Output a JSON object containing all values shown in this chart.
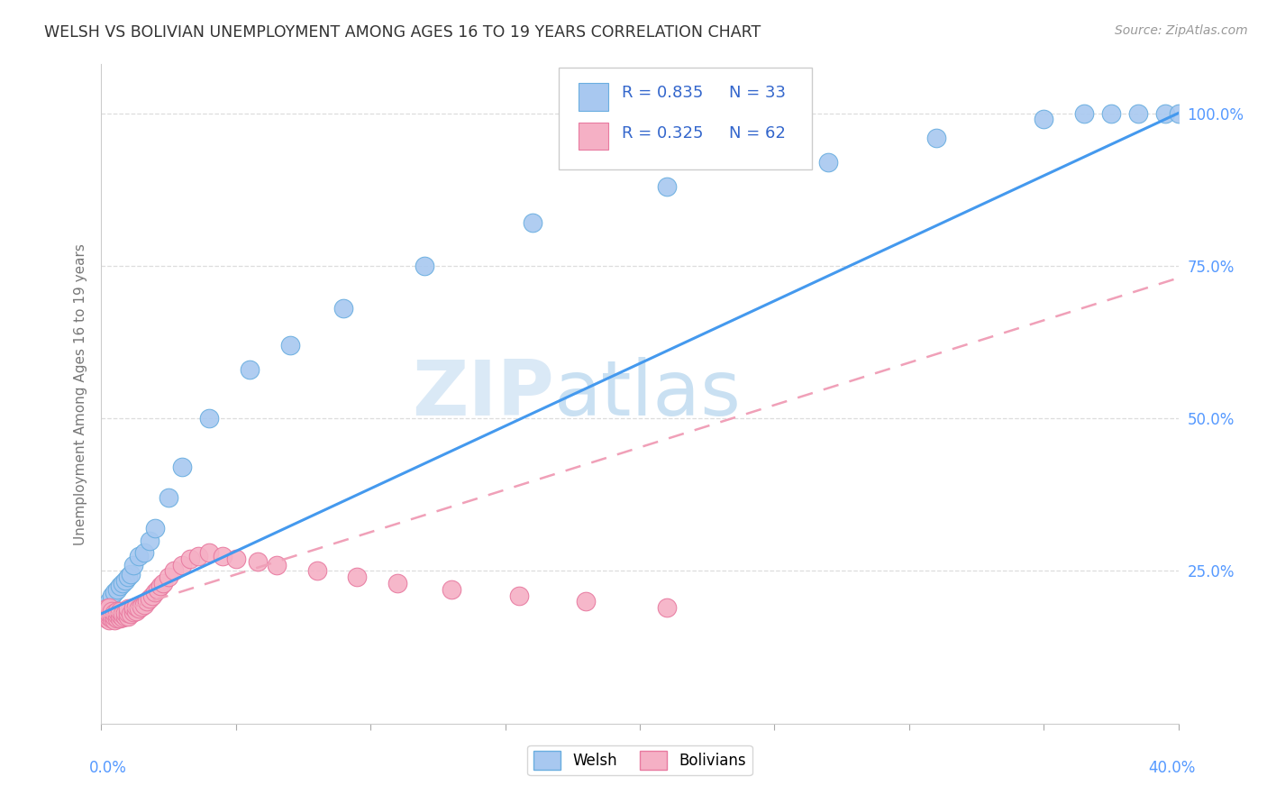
{
  "title": "WELSH VS BOLIVIAN UNEMPLOYMENT AMONG AGES 16 TO 19 YEARS CORRELATION CHART",
  "source": "Source: ZipAtlas.com",
  "ylabel": "Unemployment Among Ages 16 to 19 years",
  "welsh_color": "#a8c8f0",
  "welsh_edge_color": "#6aaee0",
  "bolivian_color": "#f5b0c5",
  "bolivian_edge_color": "#e87aa0",
  "welsh_line_color": "#4499ee",
  "bolivian_line_color": "#f0a0b8",
  "axis_tick_color": "#5599ff",
  "grid_color": "#dddddd",
  "title_color": "#333333",
  "source_color": "#999999",
  "ylabel_color": "#777777",
  "watermark_color": "#d0e8f8",
  "xlim": [
    0.0,
    0.4
  ],
  "ylim": [
    0.0,
    1.08
  ],
  "welsh_x": [
    0.001,
    0.002,
    0.003,
    0.004,
    0.005,
    0.006,
    0.007,
    0.008,
    0.009,
    0.01,
    0.011,
    0.012,
    0.014,
    0.016,
    0.018,
    0.02,
    0.025,
    0.03,
    0.04,
    0.055,
    0.07,
    0.09,
    0.12,
    0.16,
    0.21,
    0.27,
    0.31,
    0.35,
    0.365,
    0.375,
    0.385,
    0.395,
    0.4
  ],
  "welsh_y": [
    0.18,
    0.19,
    0.2,
    0.21,
    0.215,
    0.22,
    0.225,
    0.23,
    0.235,
    0.24,
    0.245,
    0.26,
    0.275,
    0.28,
    0.3,
    0.32,
    0.37,
    0.42,
    0.5,
    0.58,
    0.62,
    0.68,
    0.75,
    0.82,
    0.88,
    0.92,
    0.96,
    0.99,
    1.0,
    1.0,
    1.0,
    1.0,
    1.0
  ],
  "bolivian_x": [
    0.001,
    0.001,
    0.001,
    0.002,
    0.002,
    0.002,
    0.002,
    0.003,
    0.003,
    0.003,
    0.003,
    0.004,
    0.004,
    0.004,
    0.005,
    0.005,
    0.005,
    0.006,
    0.006,
    0.006,
    0.007,
    0.007,
    0.007,
    0.008,
    0.008,
    0.009,
    0.009,
    0.01,
    0.01,
    0.01,
    0.011,
    0.012,
    0.012,
    0.013,
    0.013,
    0.014,
    0.015,
    0.016,
    0.017,
    0.018,
    0.019,
    0.02,
    0.021,
    0.022,
    0.023,
    0.025,
    0.027,
    0.03,
    0.033,
    0.036,
    0.04,
    0.045,
    0.05,
    0.058,
    0.065,
    0.08,
    0.095,
    0.11,
    0.13,
    0.155,
    0.18,
    0.21
  ],
  "bolivian_y": [
    0.175,
    0.18,
    0.185,
    0.172,
    0.178,
    0.183,
    0.188,
    0.17,
    0.175,
    0.18,
    0.19,
    0.172,
    0.178,
    0.185,
    0.17,
    0.176,
    0.182,
    0.173,
    0.179,
    0.185,
    0.172,
    0.178,
    0.185,
    0.174,
    0.18,
    0.175,
    0.182,
    0.175,
    0.182,
    0.188,
    0.18,
    0.183,
    0.19,
    0.185,
    0.192,
    0.188,
    0.192,
    0.195,
    0.2,
    0.205,
    0.21,
    0.215,
    0.22,
    0.225,
    0.23,
    0.24,
    0.25,
    0.26,
    0.27,
    0.275,
    0.28,
    0.275,
    0.27,
    0.265,
    0.26,
    0.25,
    0.24,
    0.23,
    0.22,
    0.21,
    0.2,
    0.19
  ],
  "welsh_line_x0": 0.0,
  "welsh_line_y0": 0.18,
  "welsh_line_x1": 0.4,
  "welsh_line_y1": 1.0,
  "bolivian_line_x0": 0.0,
  "bolivian_line_y0": 0.175,
  "bolivian_line_x1": 0.4,
  "bolivian_line_y1": 0.73,
  "legend_r_welsh": "R = 0.835",
  "legend_n_welsh": "N = 33",
  "legend_r_bolivian": "R = 0.325",
  "legend_n_bolivian": "N = 62",
  "bottom_legend_welsh": "Welsh",
  "bottom_legend_bolivian": "Bolivians"
}
